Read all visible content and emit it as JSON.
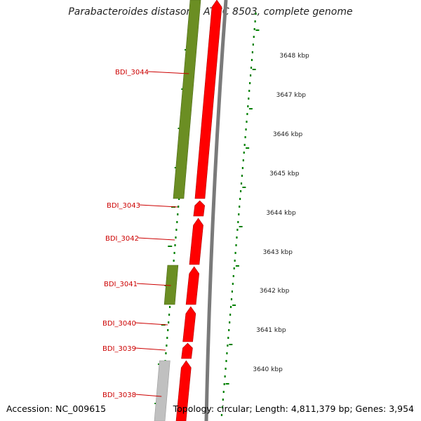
{
  "header": {
    "title": "Parabacteroides distasonis ATCC 8503, complete genome"
  },
  "footer": {
    "accession": "Accession: NC_009615",
    "info": "Topology: circular; Length: 4,811,379 bp; Genes: 3,954"
  },
  "colors": {
    "forward_gene": "#6b8e23",
    "cds": "#ff0000",
    "rna_gene": "#c0c0c0",
    "backbone": "#7a7a7a",
    "label": "#cc0000",
    "tick": "#008000"
  },
  "ticks": [
    {
      "label": "3648 kbp"
    },
    {
      "label": "3647 kbp"
    },
    {
      "label": "3646 kbp"
    },
    {
      "label": "3645 kbp"
    },
    {
      "label": "3644 kbp"
    },
    {
      "label": "3643 kbp"
    },
    {
      "label": "3642 kbp"
    },
    {
      "label": "3641 kbp"
    },
    {
      "label": "3640 kbp"
    }
  ],
  "gene_labels": [
    {
      "label": "BDI_3044"
    },
    {
      "label": "BDI_3043"
    },
    {
      "label": "BDI_3042"
    },
    {
      "label": "BDI_3041"
    },
    {
      "label": "BDI_3040"
    },
    {
      "label": "BDI_3039"
    },
    {
      "label": "BDI_3038"
    }
  ]
}
